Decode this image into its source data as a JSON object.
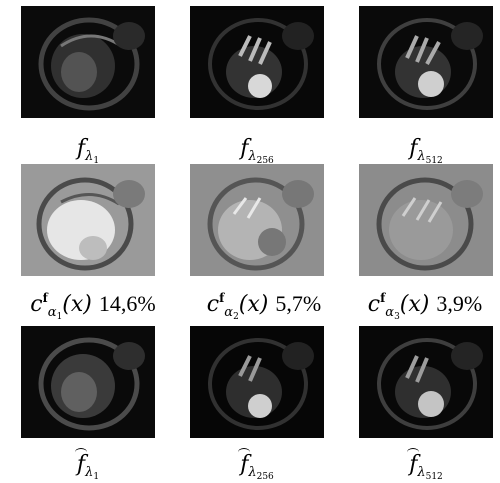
{
  "row1": [
    {
      "name": "f",
      "sub": "λ",
      "subsub": "1"
    },
    {
      "name": "f",
      "sub": "λ",
      "subsub": "256"
    },
    {
      "name": "f",
      "sub": "λ",
      "subsub": "512"
    }
  ],
  "row2": [
    {
      "name": "c",
      "sup": "f",
      "sub": "α",
      "subsub": "1",
      "arg": "(x)",
      "pct": "14,6%"
    },
    {
      "name": "c",
      "sup": "f",
      "sub": "α",
      "subsub": "2",
      "arg": "(x)",
      "pct": "5,7%"
    },
    {
      "name": "c",
      "sup": "f",
      "sub": "α",
      "subsub": "3",
      "arg": "(x)",
      "pct": "3,9%"
    }
  ],
  "row3": [
    {
      "name": "f",
      "sub": "λ",
      "subsub": "1"
    },
    {
      "name": "f",
      "sub": "λ",
      "subsub": "256"
    },
    {
      "name": "f",
      "sub": "λ",
      "subsub": "512"
    }
  ]
}
